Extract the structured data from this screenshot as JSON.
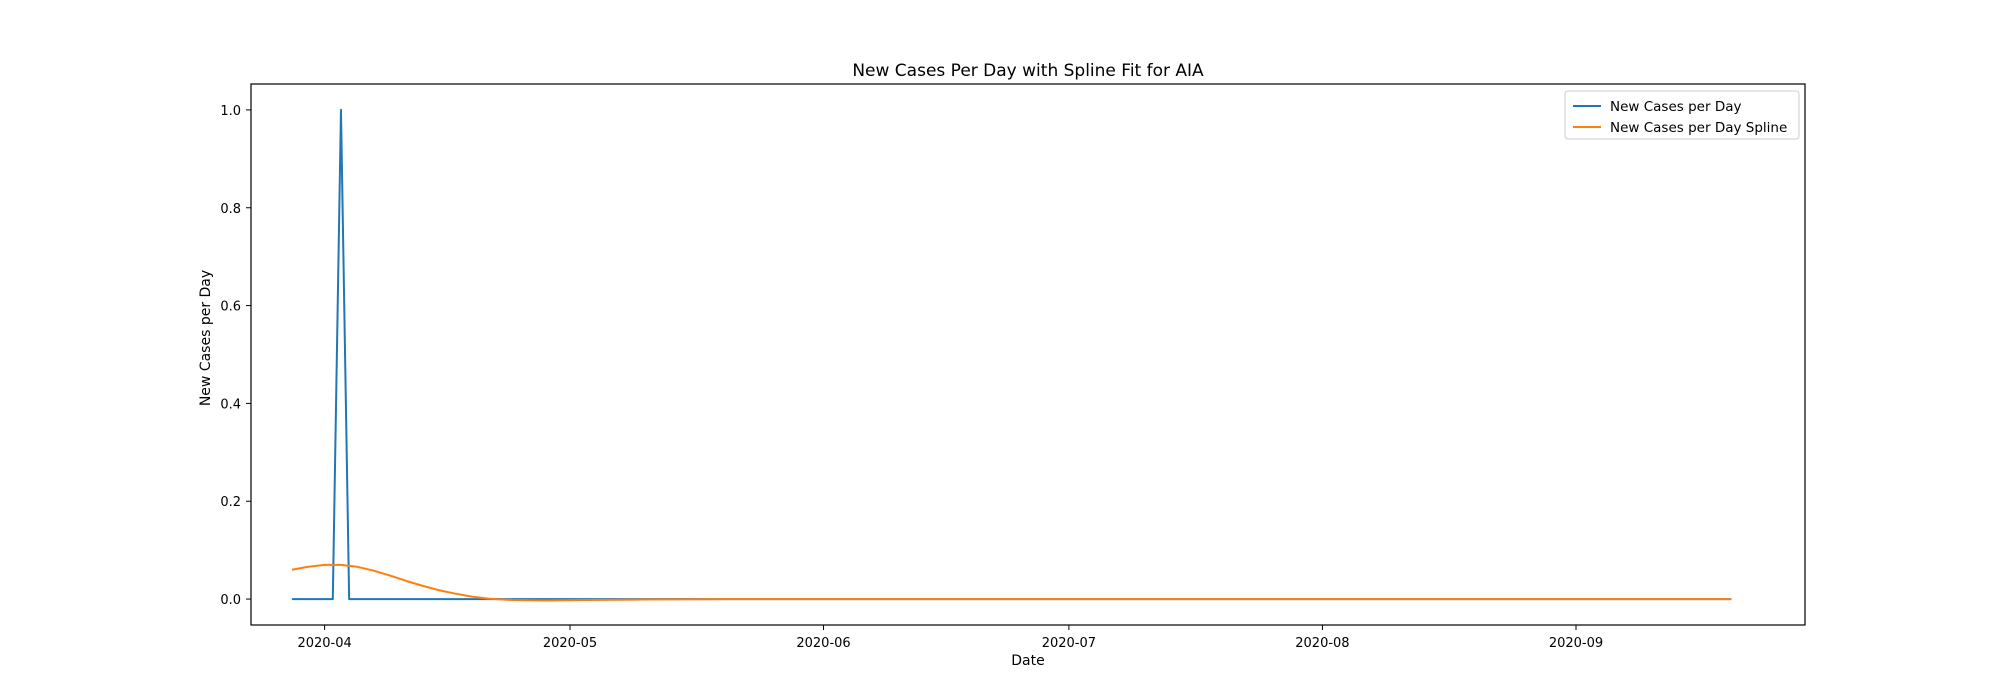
{
  "chart_data": {
    "type": "line",
    "title": "New Cases Per Day with Spline Fit for AIA",
    "xlabel": "Date",
    "ylabel": "New Cases per Day",
    "xlim": [
      "2020-03-23",
      "2020-09-29"
    ],
    "ylim": [
      -0.053,
      1.053
    ],
    "x_ticks": [
      "2020-04",
      "2020-05",
      "2020-06",
      "2020-07",
      "2020-08",
      "2020-09"
    ],
    "y_ticks": [
      "0.0",
      "0.2",
      "0.4",
      "0.6",
      "0.8",
      "1.0"
    ],
    "grid": false,
    "legend_position": "top-right",
    "series": [
      {
        "name": "New Cases per Day",
        "color": "#1f77b4",
        "points": [
          [
            "2020-03-28",
            0
          ],
          [
            "2020-04-02",
            0
          ],
          [
            "2020-04-03",
            1
          ],
          [
            "2020-04-04",
            0
          ],
          [
            "2020-09-20",
            0
          ]
        ]
      },
      {
        "name": "New Cases per Day Spline",
        "color": "#ff7f0e",
        "points": [
          [
            "2020-03-28",
            0.06
          ],
          [
            "2020-03-30",
            0.066
          ],
          [
            "2020-04-01",
            0.07
          ],
          [
            "2020-04-03",
            0.07
          ],
          [
            "2020-04-05",
            0.066
          ],
          [
            "2020-04-07",
            0.058
          ],
          [
            "2020-04-09",
            0.048
          ],
          [
            "2020-04-11",
            0.037
          ],
          [
            "2020-04-13",
            0.027
          ],
          [
            "2020-04-15",
            0.018
          ],
          [
            "2020-04-17",
            0.011
          ],
          [
            "2020-04-19",
            0.005
          ],
          [
            "2020-04-21",
            0.001
          ],
          [
            "2020-04-24",
            -0.002
          ],
          [
            "2020-04-28",
            -0.003
          ],
          [
            "2020-05-03",
            -0.002
          ],
          [
            "2020-05-10",
            -0.001
          ],
          [
            "2020-05-20",
            0.0
          ],
          [
            "2020-06-01",
            0.0
          ],
          [
            "2020-07-01",
            0.0
          ],
          [
            "2020-08-01",
            0.0
          ],
          [
            "2020-09-01",
            0.0
          ],
          [
            "2020-09-20",
            0.0
          ]
        ]
      }
    ]
  }
}
